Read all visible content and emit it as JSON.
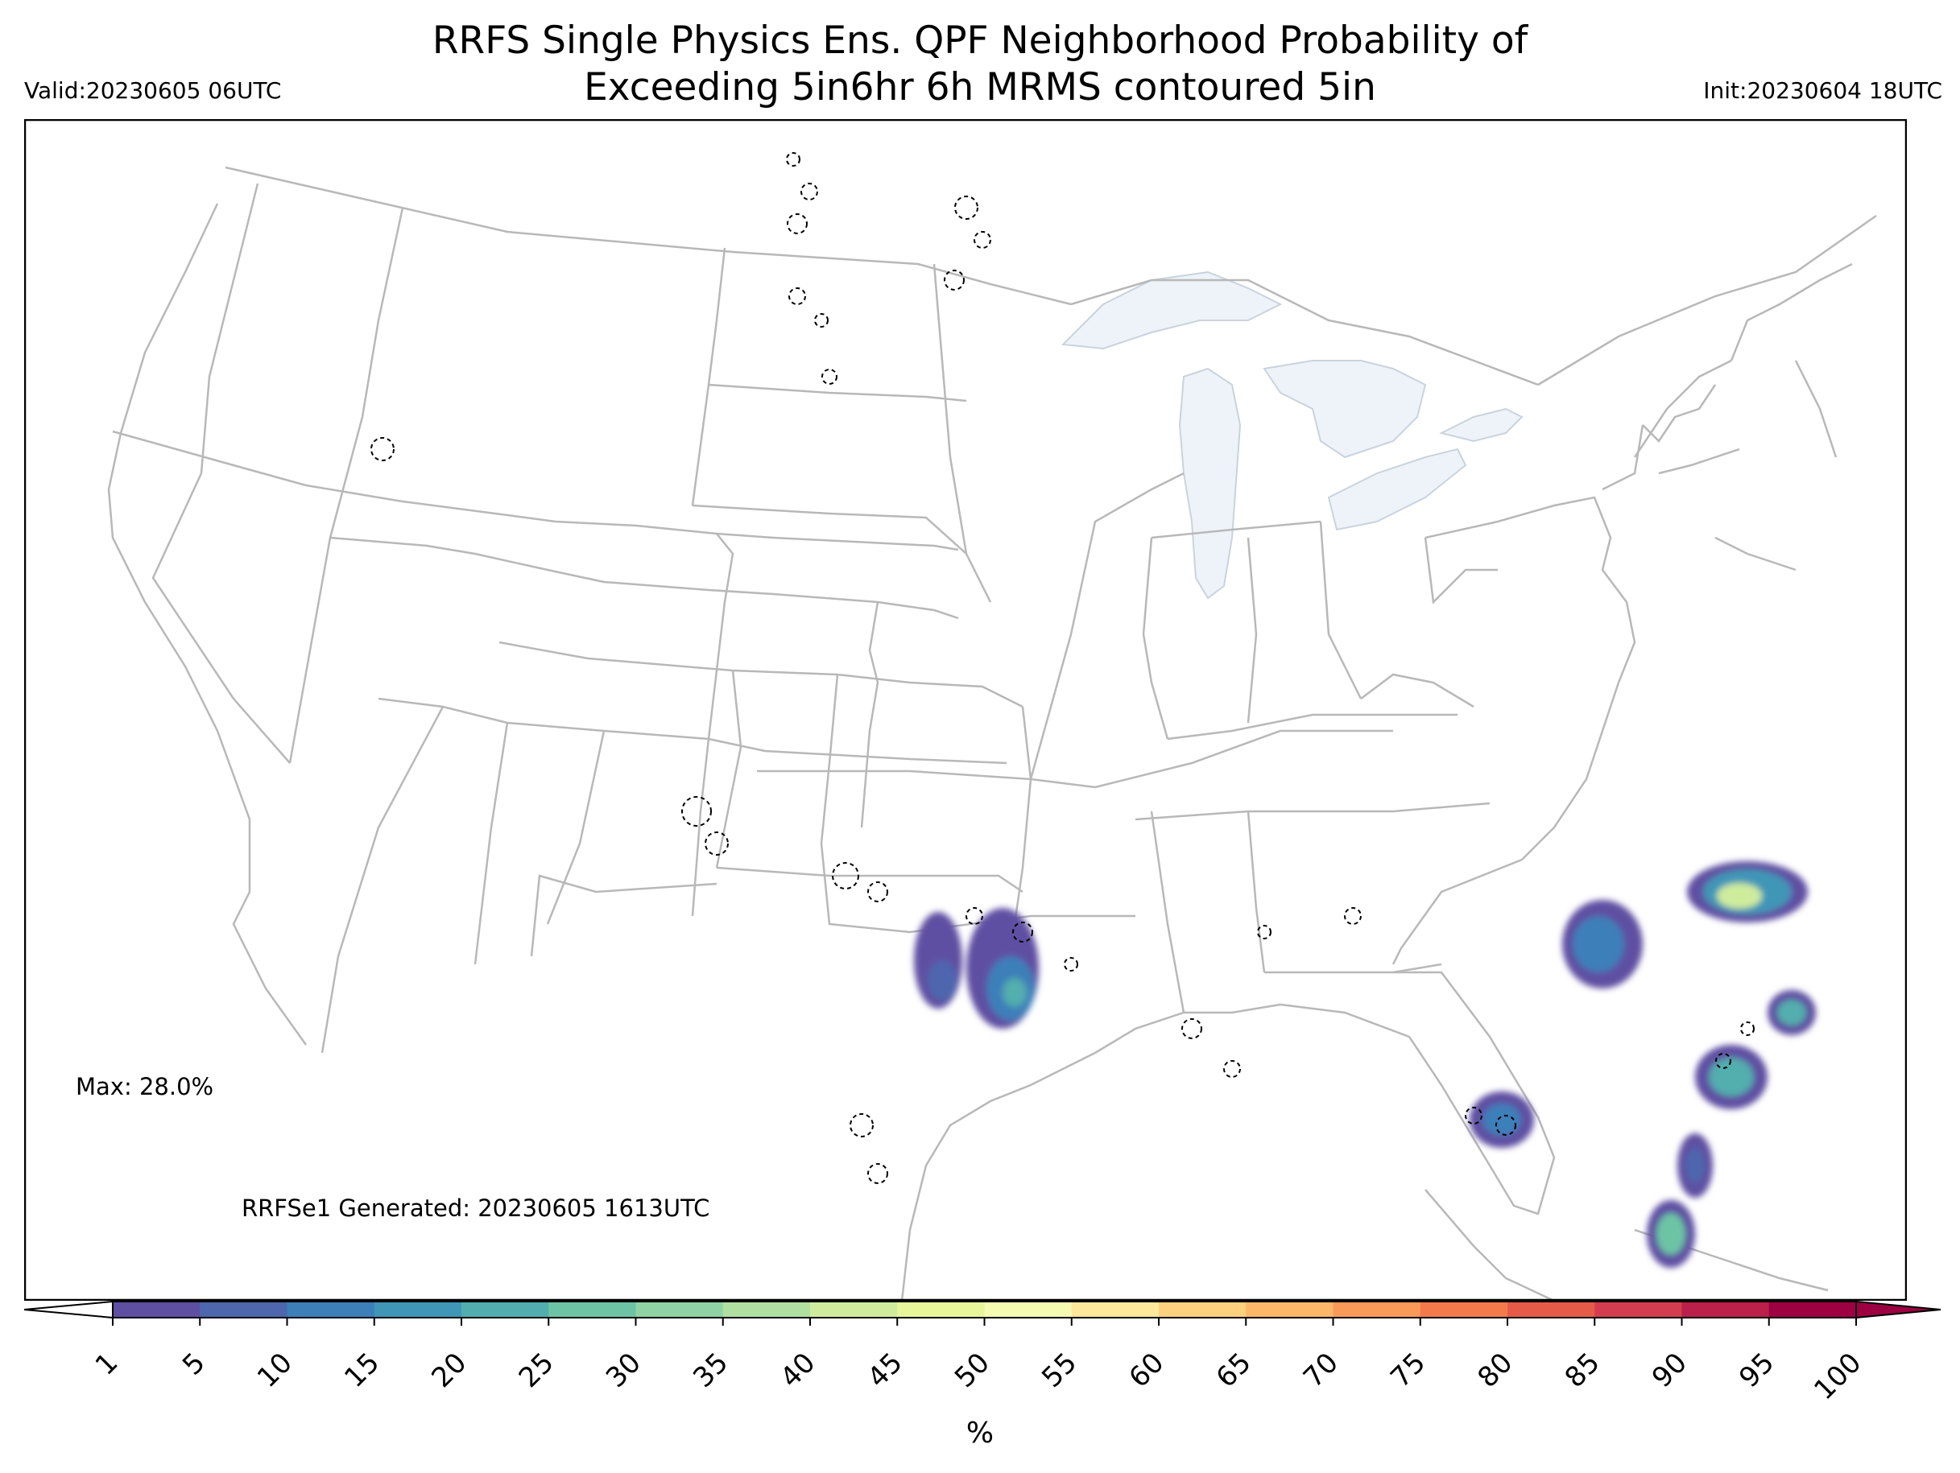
{
  "header": {
    "title_line1": "RRFS Single Physics Ens. QPF Neighborhood Probability of",
    "title_line2": "Exceeding 5in6hr 6h MRMS contoured 5in",
    "valid": "Valid:20230605 06UTC",
    "init": "Init:20230604 18UTC"
  },
  "annotations": {
    "max": "Max: 28.0%",
    "generated": "RRFSe1 Generated: 20230605 1613UTC"
  },
  "colorbar": {
    "unit_label": "%",
    "ticks": [
      "1",
      "5",
      "10",
      "15",
      "20",
      "25",
      "30",
      "35",
      "40",
      "45",
      "50",
      "55",
      "60",
      "65",
      "70",
      "75",
      "80",
      "85",
      "90",
      "95",
      "100"
    ],
    "colors": [
      "#5e4fa2",
      "#4d66ad",
      "#3d7fb9",
      "#3f96b7",
      "#52aeae",
      "#6dc4a5",
      "#8fd2a4",
      "#b0dfa2",
      "#cfec9d",
      "#e8f69a",
      "#f6fbb2",
      "#fee99a",
      "#fed17f",
      "#fdb768",
      "#fa9a59",
      "#f47a4b",
      "#e65b47",
      "#d43d4f",
      "#ba2049",
      "#9e0142"
    ],
    "under_color": "#ffffff",
    "over_color": "#9e0142"
  },
  "map": {
    "basemap": "CONUS state boundaries and coastlines (light grey), Great Lakes shaded light blue",
    "overlay": "MRMS 5 in contours shown as black dashed outlines",
    "probability_max_percent": 28.0
  }
}
